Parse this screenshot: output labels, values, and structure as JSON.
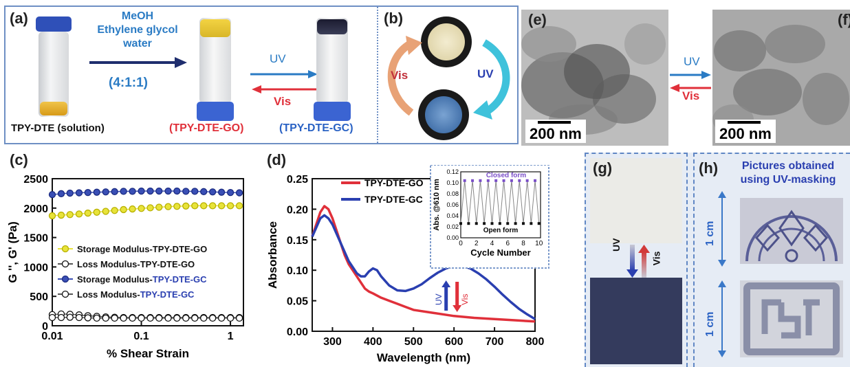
{
  "panels": {
    "a": "(a)",
    "b": "(b)",
    "c": "(c)",
    "d": "(d)",
    "e": "(e)",
    "f": "(f)",
    "g": "(g)",
    "h": "(h)"
  },
  "panel_a": {
    "solvent_line1": "MeOH",
    "solvent_line2": "Ethylene glycol",
    "solvent_line3": "water",
    "ratio": "(4:1:1)",
    "uv": "UV",
    "vis": "Vis",
    "label_solution": "TPY-DTE (solution)",
    "label_go": "(TPY-DTE-GO)",
    "label_gc": "(TPY-DTE-GC)"
  },
  "panel_b": {
    "vis": "Vis",
    "uv": "UV"
  },
  "panel_ef": {
    "uv": "UV",
    "vis": "Vis",
    "scale_e": "200 nm",
    "scale_f": "200 nm"
  },
  "panel_g": {
    "uv": "UV",
    "vis": "Vis"
  },
  "panel_h": {
    "title_line1": "Pictures obtained",
    "title_line2": "using UV-masking",
    "scale1": "1 cm",
    "scale2": "1 cm"
  },
  "colors": {
    "go": "#e8e33a",
    "gc": "#3a4fb5",
    "red": "#e0303a",
    "blue": "#2a62c4",
    "accent_blue": "#2a7bc4"
  },
  "chart_data": [
    {
      "type": "scatter",
      "xlabel": "% Shear Strain",
      "ylabel": "G '', G' (Pa)",
      "xscale": "log",
      "xlim": [
        0.01,
        1.4
      ],
      "ylim": [
        0,
        2500
      ],
      "xticks": [
        "0.01",
        "0.1",
        "1"
      ],
      "yticks": [
        "0",
        "500",
        "1000",
        "1500",
        "2000",
        "2500"
      ],
      "legend_placement": "middle-left",
      "series": [
        {
          "name": "Storage Modulus-TPY-DTE-GO",
          "legend_prefix": "Storage Modulus-",
          "legend_suffix": "TPY-DTE-GO",
          "suffix_color": "#111111",
          "color": "#e8e33a",
          "filled": true,
          "x": [
            0.01,
            0.0126,
            0.0158,
            0.02,
            0.0251,
            0.0316,
            0.0398,
            0.0501,
            0.0631,
            0.0794,
            0.1,
            0.126,
            0.158,
            0.2,
            0.251,
            0.316,
            0.398,
            0.501,
            0.631,
            0.794,
            1.0,
            1.26
          ],
          "y": [
            1870,
            1880,
            1890,
            1900,
            1915,
            1930,
            1945,
            1960,
            1975,
            1985,
            1995,
            2005,
            2015,
            2025,
            2030,
            2035,
            2040,
            2040,
            2040,
            2040,
            2040,
            2040
          ]
        },
        {
          "name": "Loss Modulus-TPY-DTE-GO",
          "legend_prefix": "Loss Modulus-",
          "legend_suffix": "TPY-DTE-GO",
          "suffix_color": "#111111",
          "color": "#111111",
          "filled": false,
          "x": [
            0.01,
            0.0126,
            0.0158,
            0.02,
            0.0251,
            0.0316,
            0.0398,
            0.0501,
            0.0631,
            0.0794,
            0.1,
            0.126,
            0.158,
            0.2,
            0.251,
            0.316,
            0.398,
            0.501,
            0.631,
            0.794,
            1.0,
            1.26
          ],
          "y": [
            190,
            200,
            195,
            185,
            170,
            160,
            150,
            145,
            140,
            140,
            140,
            140,
            140,
            140,
            140,
            140,
            140,
            140,
            140,
            140,
            140,
            140
          ]
        },
        {
          "name": "Storage Modulus-TPY-DTE-GC",
          "legend_prefix": "Storage Modulus-",
          "legend_suffix": "TPY-DTE-GC",
          "suffix_color": "#2a3fb0",
          "color": "#3a4fb5",
          "filled": true,
          "x": [
            0.01,
            0.0126,
            0.0158,
            0.02,
            0.0251,
            0.0316,
            0.0398,
            0.0501,
            0.0631,
            0.0794,
            0.1,
            0.126,
            0.158,
            0.2,
            0.251,
            0.316,
            0.398,
            0.501,
            0.631,
            0.794,
            1.0,
            1.26
          ],
          "y": [
            2230,
            2245,
            2255,
            2260,
            2265,
            2270,
            2275,
            2280,
            2285,
            2285,
            2290,
            2290,
            2290,
            2290,
            2290,
            2285,
            2285,
            2280,
            2275,
            2270,
            2265,
            2260
          ]
        },
        {
          "name": "Loss Modulus-TPY-DTE-GC",
          "legend_prefix": "Loss Modulus-",
          "legend_suffix": "TPY-DTE-GC",
          "suffix_color": "#2a3fb0",
          "color": "#3a4fb5",
          "filled": false,
          "x": [
            0.01,
            0.0126,
            0.0158,
            0.02,
            0.0251,
            0.0316,
            0.0398,
            0.0501,
            0.0631,
            0.0794,
            0.1,
            0.126,
            0.158,
            0.2,
            0.251,
            0.316,
            0.398,
            0.501,
            0.631,
            0.794,
            1.0,
            1.26
          ],
          "y": [
            140,
            140,
            145,
            140,
            135,
            130,
            130,
            130,
            130,
            130,
            130,
            130,
            130,
            130,
            130,
            130,
            130,
            130,
            130,
            130,
            130,
            130
          ]
        }
      ]
    },
    {
      "type": "line",
      "xlabel": "Wavelength (nm)",
      "ylabel": "Absorbance",
      "xlim": [
        250,
        800
      ],
      "ylim": [
        0,
        0.25
      ],
      "xticks": [
        "300",
        "400",
        "500",
        "600",
        "700",
        "800"
      ],
      "yticks": [
        "0.00",
        "0.05",
        "0.10",
        "0.15",
        "0.20",
        "0.25"
      ],
      "legend_placement": "top-center",
      "arrow_labels": {
        "uv": "UV",
        "vis": "Vis"
      },
      "series": [
        {
          "name": "TPY-DTE-GO",
          "color": "#e0303a",
          "x": [
            250,
            260,
            270,
            280,
            290,
            300,
            310,
            320,
            330,
            340,
            350,
            360,
            370,
            380,
            390,
            400,
            420,
            440,
            460,
            480,
            500,
            550,
            600,
            650,
            700,
            750,
            800
          ],
          "y": [
            0.155,
            0.175,
            0.195,
            0.205,
            0.2,
            0.185,
            0.165,
            0.145,
            0.125,
            0.11,
            0.1,
            0.09,
            0.08,
            0.07,
            0.065,
            0.062,
            0.055,
            0.05,
            0.045,
            0.04,
            0.035,
            0.03,
            0.025,
            0.022,
            0.02,
            0.018,
            0.016
          ]
        },
        {
          "name": "TPY-DTE-GC",
          "color": "#2a3fb0",
          "x": [
            250,
            260,
            270,
            280,
            290,
            300,
            310,
            320,
            330,
            340,
            350,
            360,
            370,
            380,
            390,
            400,
            410,
            420,
            440,
            460,
            480,
            500,
            520,
            540,
            560,
            580,
            600,
            620,
            640,
            660,
            680,
            700,
            720,
            740,
            760,
            780,
            800
          ],
          "y": [
            0.155,
            0.17,
            0.185,
            0.19,
            0.185,
            0.175,
            0.16,
            0.145,
            0.13,
            0.115,
            0.105,
            0.095,
            0.09,
            0.09,
            0.098,
            0.103,
            0.1,
            0.09,
            0.075,
            0.067,
            0.066,
            0.07,
            0.077,
            0.087,
            0.096,
            0.103,
            0.107,
            0.107,
            0.103,
            0.095,
            0.085,
            0.073,
            0.06,
            0.048,
            0.037,
            0.028,
            0.02
          ]
        }
      ]
    },
    {
      "type": "line",
      "title": "inset",
      "xlabel": "Cycle Number",
      "ylabel": "Abs. @610 nm",
      "xlim": [
        0,
        10.2
      ],
      "ylim": [
        0,
        0.12
      ],
      "xticks": [
        "0",
        "2",
        "4",
        "6",
        "8",
        "10"
      ],
      "yticks": [
        "0.00",
        "0.02",
        "0.04",
        "0.06",
        "0.08",
        "0.10",
        "0.12"
      ],
      "annotations": {
        "closed": "Closed form",
        "open": "Open form"
      },
      "x": [
        0,
        0.5,
        1,
        1.5,
        2,
        2.5,
        3,
        3.5,
        4,
        4.5,
        5,
        5.5,
        6,
        6.5,
        7,
        7.5,
        8,
        8.5,
        9,
        9.5,
        10
      ],
      "y": [
        0.026,
        0.104,
        0.026,
        0.104,
        0.026,
        0.104,
        0.026,
        0.104,
        0.026,
        0.104,
        0.026,
        0.104,
        0.026,
        0.104,
        0.026,
        0.104,
        0.026,
        0.104,
        0.026,
        0.104,
        0.026
      ]
    }
  ]
}
